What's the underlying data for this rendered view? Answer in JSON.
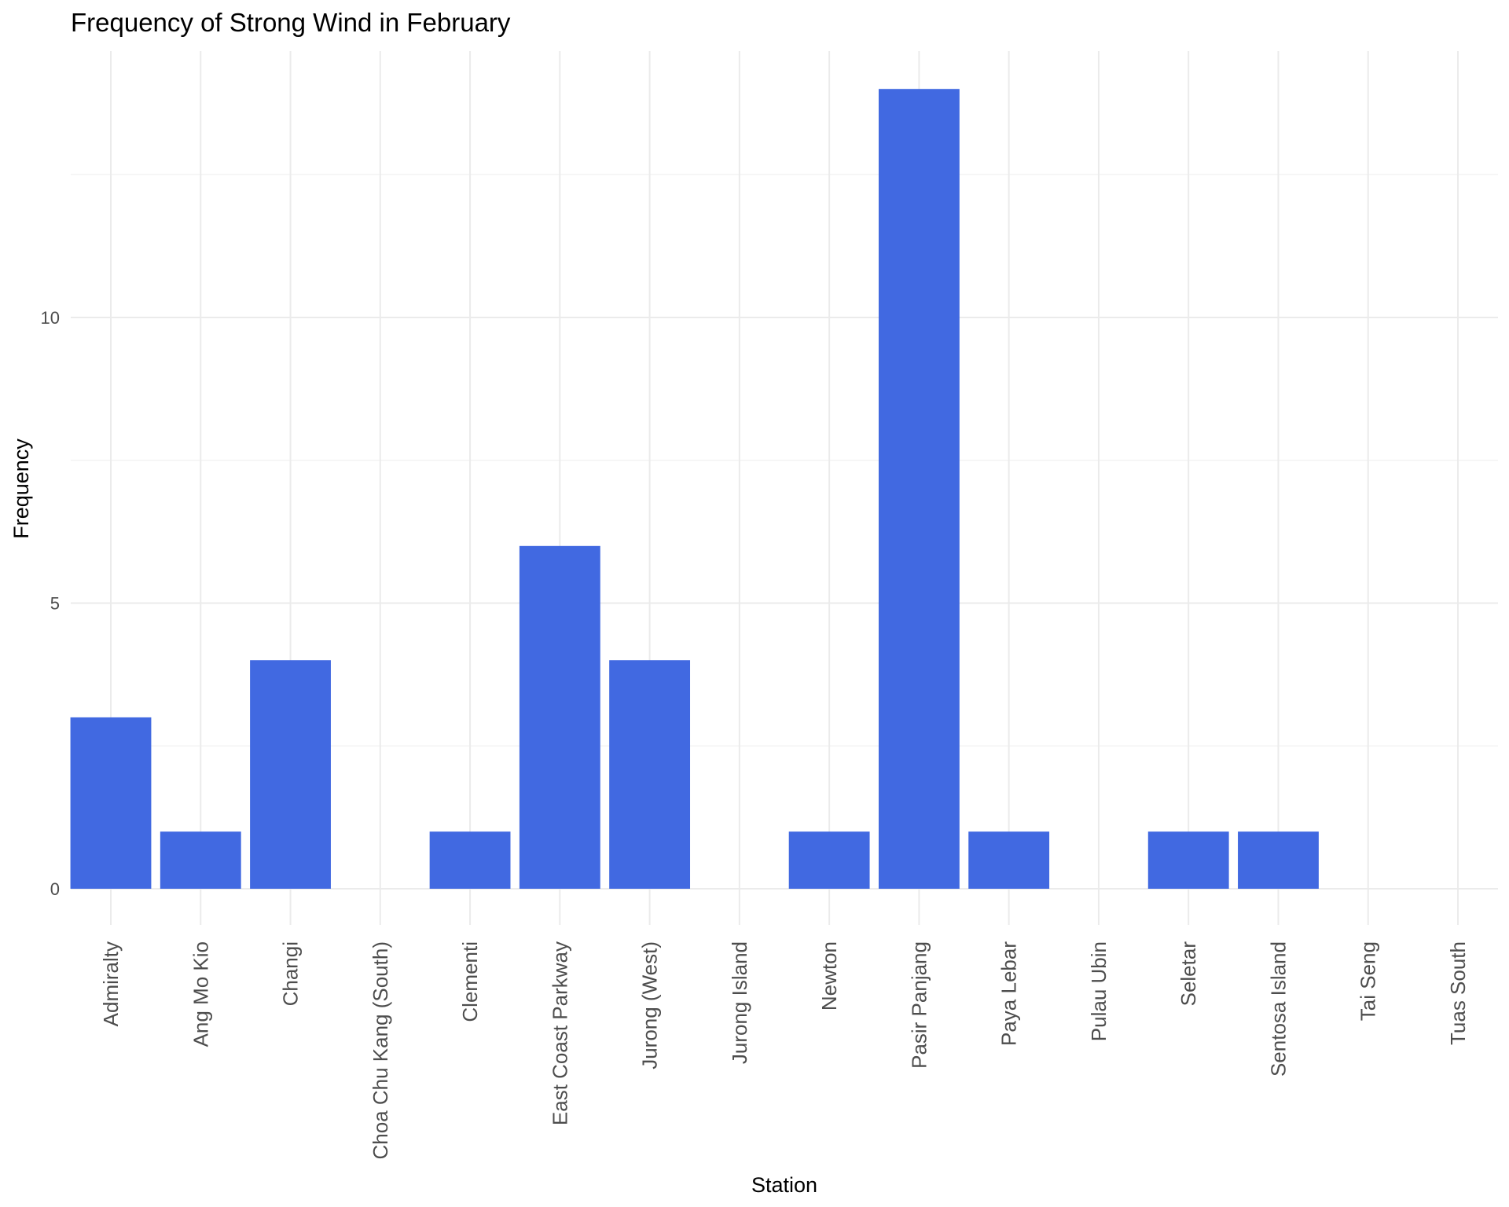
{
  "chart_data": {
    "type": "bar",
    "title": "Frequency of Strong Wind in February",
    "xlabel": "Station",
    "ylabel": "Frequency",
    "categories": [
      "Admiralty",
      "Ang Mo Kio",
      "Changi",
      "Choa Chu Kang (South)",
      "Clementi",
      "East Coast Parkway",
      "Jurong (West)",
      "Jurong Island",
      "Newton",
      "Pasir Panjang",
      "Paya Lebar",
      "Pulau Ubin",
      "Seletar",
      "Sentosa Island",
      "Tai Seng",
      "Tuas South"
    ],
    "values": [
      3,
      1,
      4,
      0,
      1,
      6,
      4,
      0,
      1,
      14,
      1,
      0,
      1,
      1,
      0,
      0
    ],
    "y_ticks": [
      0,
      5,
      10
    ],
    "ylim": [
      -0.7,
      14.7
    ],
    "bar_color": "#4169E1",
    "grid": true,
    "legend": "none"
  }
}
